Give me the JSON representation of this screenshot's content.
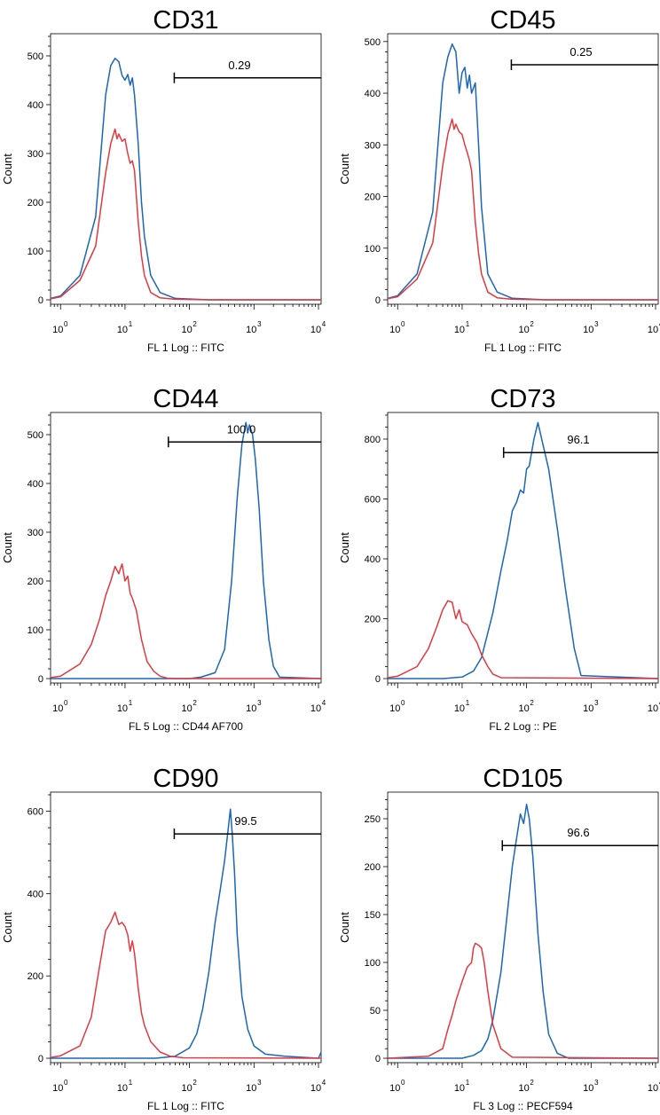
{
  "colors": {
    "stained": "#1a66b8",
    "control": "#e2383f",
    "axis": "#000000"
  },
  "chart_data": [
    {
      "type": "line",
      "title": "CD31",
      "xlabel": "FL 1 Log :: FITC",
      "ylabel": "Count",
      "xscale": "log",
      "xlim": [
        0.7,
        11000
      ],
      "ylim": [
        0,
        540
      ],
      "x_ticks": [
        "0",
        "1",
        "2",
        "3",
        "4"
      ],
      "y_ticks": [
        0,
        100,
        200,
        300,
        400,
        500
      ],
      "y_minor_step": 20,
      "gate": {
        "start": 58,
        "end": 11000,
        "y": 455,
        "label": "0.29",
        "label_x": 270
      },
      "series": [
        {
          "name": "stained",
          "x": [
            0.7,
            1,
            2,
            3.5,
            5,
            6,
            7,
            8,
            9,
            10,
            11,
            12,
            13,
            14,
            16,
            18,
            20,
            25,
            35,
            60,
            200,
            11000
          ],
          "y": [
            3,
            8,
            50,
            170,
            420,
            480,
            495,
            488,
            460,
            450,
            462,
            440,
            455,
            420,
            320,
            200,
            130,
            50,
            15,
            3,
            0,
            0
          ]
        },
        {
          "name": "control",
          "x": [
            0.7,
            1,
            2,
            3.5,
            5,
            6,
            7,
            7.5,
            8,
            9,
            10,
            11,
            12,
            13,
            14,
            16,
            18,
            20,
            25,
            35,
            60,
            200,
            11000
          ],
          "y": [
            2,
            6,
            40,
            110,
            260,
            320,
            350,
            330,
            340,
            325,
            330,
            300,
            280,
            285,
            265,
            160,
            90,
            50,
            15,
            4,
            1,
            0,
            0
          ]
        }
      ]
    },
    {
      "type": "line",
      "title": "CD45",
      "xlabel": "FL 1 Log :: FITC",
      "ylabel": "Count",
      "xscale": "log",
      "xlim": [
        0.7,
        11000
      ],
      "ylim": [
        0,
        510
      ],
      "x_ticks": [
        "0",
        "1",
        "2",
        "3",
        "4"
      ],
      "y_ticks": [
        0,
        100,
        200,
        300,
        400,
        500
      ],
      "y_minor_step": 20,
      "gate": {
        "start": 58,
        "end": 11000,
        "y": 455,
        "label": "0.25",
        "label_x": 655
      },
      "series": [
        {
          "name": "stained",
          "x": [
            0.7,
            1,
            2,
            3.5,
            5,
            6,
            7,
            8,
            9,
            10,
            11,
            12,
            13,
            14,
            16,
            18,
            20,
            25,
            35,
            60,
            200,
            11000
          ],
          "y": [
            3,
            8,
            50,
            170,
            420,
            470,
            495,
            480,
            400,
            440,
            450,
            410,
            435,
            400,
            420,
            300,
            180,
            50,
            15,
            3,
            0,
            0
          ]
        },
        {
          "name": "control",
          "x": [
            0.7,
            1,
            2,
            3.5,
            5,
            6,
            7,
            7.5,
            8,
            9,
            10,
            11,
            12,
            13,
            14,
            16,
            18,
            20,
            25,
            35,
            60,
            200,
            11000
          ],
          "y": [
            2,
            6,
            40,
            110,
            260,
            320,
            350,
            330,
            340,
            325,
            320,
            300,
            285,
            270,
            250,
            150,
            90,
            50,
            15,
            4,
            1,
            0,
            0
          ]
        }
      ]
    },
    {
      "type": "line",
      "title": "CD44",
      "xlabel": "FL 5 Log :: CD44 AF700",
      "ylabel": "Count",
      "xscale": "log",
      "xlim": [
        0.7,
        11000
      ],
      "ylim": [
        0,
        540
      ],
      "x_ticks": [
        "0",
        "1",
        "2",
        "3",
        "4"
      ],
      "y_ticks": [
        0,
        100,
        200,
        300,
        400,
        500
      ],
      "y_minor_step": 20,
      "gate": {
        "start": 47,
        "end": 11000,
        "y": 485,
        "label": "100.0",
        "label_x": 272
      },
      "series": [
        {
          "name": "stained",
          "x": [
            0.7,
            100,
            150,
            250,
            350,
            450,
            550,
            650,
            750,
            800,
            850,
            950,
            1050,
            1200,
            1400,
            1700,
            2000,
            2500,
            11000
          ],
          "y": [
            0,
            0,
            3,
            12,
            60,
            200,
            370,
            480,
            525,
            505,
            520,
            500,
            450,
            350,
            200,
            80,
            25,
            3,
            0
          ]
        },
        {
          "name": "control",
          "x": [
            0.7,
            1,
            2,
            3,
            4,
            5,
            6,
            7,
            8,
            9,
            10,
            11,
            12,
            13,
            15,
            18,
            22,
            28,
            35,
            45,
            60,
            11000
          ],
          "y": [
            2,
            5,
            30,
            70,
            120,
            170,
            200,
            230,
            215,
            235,
            200,
            210,
            175,
            165,
            140,
            80,
            35,
            15,
            5,
            1,
            0,
            0
          ]
        }
      ]
    },
    {
      "type": "line",
      "title": "CD73",
      "xlabel": "FL 2 Log :: PE",
      "ylabel": "Count",
      "xscale": "log",
      "xlim": [
        0.7,
        11000
      ],
      "ylim": [
        0,
        880
      ],
      "x_ticks": [
        "0",
        "1",
        "2",
        "3",
        "4"
      ],
      "y_ticks": [
        0,
        200,
        400,
        600,
        800
      ],
      "y_minor_step": 40,
      "gate": {
        "start": 44,
        "end": 11000,
        "y": 755,
        "label": "96.1",
        "label_x": 652
      },
      "series": [
        {
          "name": "stained",
          "x": [
            0.7,
            5,
            10,
            15,
            20,
            30,
            40,
            50,
            60,
            70,
            80,
            90,
            100,
            110,
            130,
            150,
            180,
            220,
            300,
            400,
            550,
            700,
            11000
          ],
          "y": [
            0,
            0,
            5,
            25,
            70,
            220,
            360,
            460,
            560,
            590,
            630,
            620,
            700,
            710,
            800,
            855,
            780,
            700,
            500,
            300,
            100,
            10,
            0
          ]
        },
        {
          "name": "control",
          "x": [
            0.7,
            1,
            2,
            3,
            4,
            5,
            6,
            7,
            8,
            9,
            10,
            12,
            14,
            17,
            20,
            25,
            30,
            40,
            11000
          ],
          "y": [
            3,
            8,
            40,
            100,
            170,
            230,
            260,
            255,
            200,
            230,
            190,
            180,
            150,
            120,
            80,
            40,
            15,
            3,
            0
          ]
        }
      ]
    },
    {
      "type": "line",
      "title": "CD90",
      "xlabel": "FL 1 Log :: FITC",
      "ylabel": "Count",
      "xscale": "log",
      "xlim": [
        0.7,
        11000
      ],
      "ylim": [
        0,
        640
      ],
      "x_ticks": [
        "0",
        "1",
        "2",
        "3",
        "4"
      ],
      "y_ticks": [
        0,
        200,
        400,
        600
      ],
      "y_minor_step": 40,
      "gate": {
        "start": 58,
        "end": 11000,
        "y": 545,
        "label": "99.5",
        "label_x": 277
      },
      "series": [
        {
          "name": "stained",
          "x": [
            0.7,
            30,
            60,
            100,
            130,
            160,
            200,
            250,
            300,
            350,
            400,
            430,
            460,
            500,
            550,
            650,
            800,
            1000,
            1500,
            3000,
            10000,
            11000
          ],
          "y": [
            0,
            0,
            5,
            25,
            60,
            120,
            210,
            330,
            410,
            480,
            560,
            605,
            545,
            450,
            300,
            150,
            70,
            30,
            10,
            5,
            0,
            15
          ]
        },
        {
          "name": "control",
          "x": [
            0.7,
            1,
            2,
            3,
            4,
            5,
            6,
            7,
            8,
            9,
            10,
            11,
            12,
            13,
            14,
            16,
            18,
            20,
            25,
            35,
            50,
            80,
            11000
          ],
          "y": [
            2,
            6,
            30,
            100,
            220,
            310,
            330,
            355,
            325,
            330,
            320,
            300,
            260,
            285,
            255,
            170,
            110,
            80,
            40,
            15,
            5,
            1,
            0
          ]
        }
      ]
    },
    {
      "type": "line",
      "title": "CD105",
      "xlabel": "FL 3 Log :: PECF594",
      "ylabel": "Count",
      "xscale": "log",
      "xlim": [
        0.7,
        11000
      ],
      "ylim": [
        0,
        275
      ],
      "x_ticks": [
        "0",
        "1",
        "2",
        "3",
        "4"
      ],
      "y_ticks": [
        0,
        50,
        100,
        150,
        200,
        250
      ],
      "y_minor_step": 10,
      "gate": {
        "start": 42,
        "end": 11000,
        "y": 222,
        "label": "96.6",
        "label_x": 652
      },
      "series": [
        {
          "name": "stained",
          "x": [
            0.7,
            10,
            15,
            20,
            25,
            30,
            40,
            50,
            60,
            70,
            80,
            90,
            100,
            110,
            125,
            150,
            180,
            220,
            300,
            450,
            11000
          ],
          "y": [
            0,
            0,
            3,
            8,
            20,
            40,
            90,
            150,
            200,
            230,
            255,
            245,
            265,
            250,
            210,
            130,
            70,
            25,
            5,
            0,
            0
          ]
        },
        {
          "name": "control",
          "x": [
            0.7,
            3,
            5,
            6,
            7,
            8,
            10,
            12,
            14,
            15,
            16,
            18,
            20,
            22,
            25,
            30,
            40,
            60,
            11000
          ],
          "y": [
            0,
            2,
            10,
            30,
            45,
            60,
            80,
            95,
            100,
            115,
            120,
            118,
            115,
            100,
            70,
            35,
            10,
            1,
            0
          ]
        }
      ]
    }
  ]
}
